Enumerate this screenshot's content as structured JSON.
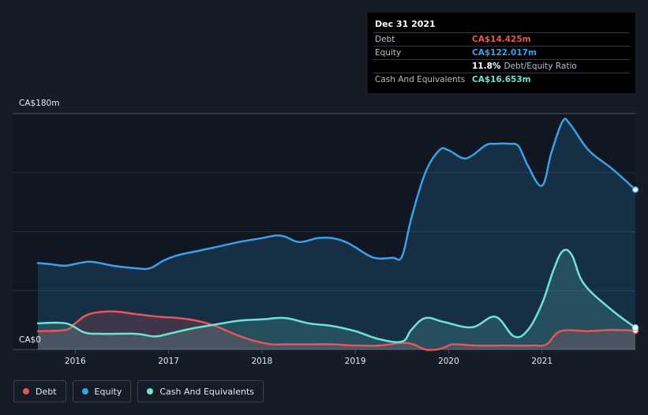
{
  "tooltip": {
    "date": "Dec 31 2021",
    "rows": [
      {
        "label": "Debt",
        "value": "CA$14.425m",
        "color": "#e5555b"
      },
      {
        "label": "Equity",
        "value": "CA$122.017m",
        "color": "#3aa0ea"
      },
      {
        "ratio_value": "11.8%",
        "ratio_label": "Debt/Equity Ratio"
      },
      {
        "label": "Cash And Equivalents",
        "value": "CA$16.653m",
        "color": "#6de4d3"
      }
    ]
  },
  "legend": [
    {
      "label": "Debt",
      "color": "#e5555b"
    },
    {
      "label": "Equity",
      "color": "#3aa0ea"
    },
    {
      "label": "Cash And Equivalents",
      "color": "#6de4d3"
    }
  ],
  "chart_data": {
    "type": "area",
    "y_top_label": "CA$180m",
    "y_bottom_label": "CA$0",
    "ylim": [
      0,
      180
    ],
    "xlim": [
      2015.6,
      2022.0
    ],
    "x_ticks": [
      2016,
      2017,
      2018,
      2019,
      2020,
      2021
    ],
    "x_tick_labels": [
      "2016",
      "2017",
      "2018",
      "2019",
      "2020",
      "2021"
    ],
    "grid": true,
    "legend_position": "bottom-left",
    "series": [
      {
        "name": "Equity",
        "color": "#3aa0ea",
        "x": [
          2015.6,
          2015.75,
          2015.9,
          2016.15,
          2016.4,
          2016.65,
          2016.8,
          2016.95,
          2017.1,
          2017.3,
          2017.5,
          2017.75,
          2018.0,
          2018.15,
          2018.25,
          2018.4,
          2018.6,
          2018.75,
          2018.9,
          2019.0,
          2019.2,
          2019.4,
          2019.5,
          2019.6,
          2019.75,
          2019.9,
          2020.0,
          2020.15,
          2020.25,
          2020.4,
          2020.5,
          2020.65,
          2020.75,
          2020.85,
          2021.0,
          2021.1,
          2021.22,
          2021.3,
          2021.5,
          2021.75,
          2022.0
        ],
        "values": [
          66,
          65,
          64,
          67,
          64,
          62,
          62,
          68,
          72,
          75,
          78,
          82,
          85,
          87,
          86,
          82,
          85,
          85,
          82,
          78,
          70,
          70,
          71,
          100,
          135,
          152,
          152,
          146,
          148,
          156,
          157,
          157,
          155,
          140,
          125,
          150,
          174,
          172,
          152,
          138,
          122
        ]
      },
      {
        "name": "Debt",
        "color": "#e5555b",
        "x": [
          2015.6,
          2015.9,
          2016.0,
          2016.15,
          2016.4,
          2016.65,
          2016.9,
          2017.1,
          2017.3,
          2017.5,
          2017.7,
          2017.9,
          2018.1,
          2018.25,
          2018.5,
          2018.75,
          2019.0,
          2019.25,
          2019.5,
          2019.62,
          2019.75,
          2019.87,
          2019.97,
          2020.05,
          2020.3,
          2020.6,
          2020.9,
          2021.05,
          2021.2,
          2021.5,
          2021.75,
          2022.0
        ],
        "values": [
          14,
          15,
          20,
          27,
          29,
          27,
          25,
          24,
          22,
          18,
          12,
          7,
          4,
          4,
          4,
          4,
          3,
          3,
          5,
          4,
          0,
          0,
          2,
          4,
          3,
          3,
          3,
          4,
          14,
          14,
          15,
          14.4
        ]
      },
      {
        "name": "Cash And Equivalents",
        "color": "#6de4d3",
        "x": [
          2015.6,
          2015.9,
          2016.1,
          2016.3,
          2016.65,
          2016.85,
          2017.0,
          2017.25,
          2017.5,
          2017.75,
          2018.0,
          2018.25,
          2018.5,
          2018.75,
          2019.0,
          2019.25,
          2019.5,
          2019.6,
          2019.75,
          2019.95,
          2020.25,
          2020.5,
          2020.7,
          2020.85,
          2021.0,
          2021.12,
          2021.22,
          2021.32,
          2021.45,
          2021.75,
          2022.0
        ],
        "values": [
          20,
          20,
          13,
          12,
          12,
          10,
          12,
          16,
          19,
          22,
          23,
          24,
          20,
          18,
          14,
          8,
          6,
          15,
          24,
          21,
          17,
          25,
          10,
          15,
          35,
          60,
          75,
          72,
          50,
          30,
          16.7
        ]
      }
    ]
  }
}
